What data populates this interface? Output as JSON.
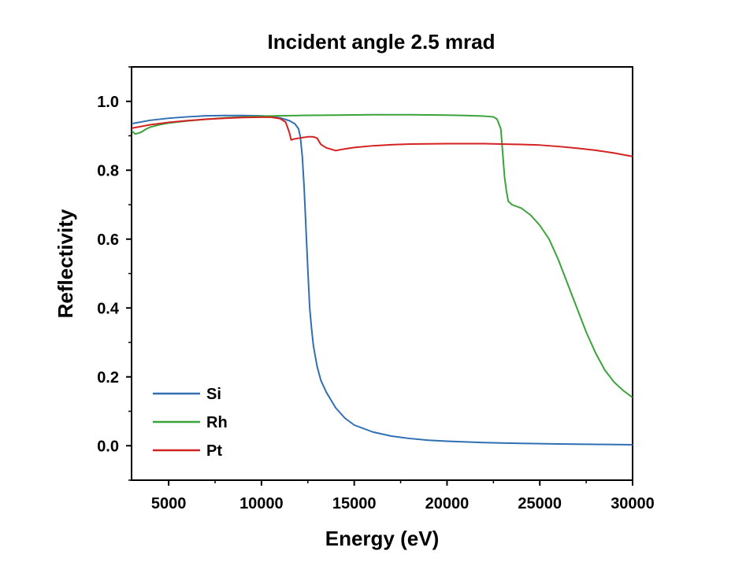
{
  "chart_data": {
    "type": "line",
    "title": "Incident angle 2.5 mrad",
    "xlabel": "Energy (eV)",
    "ylabel": "Reflectivity",
    "xlim": [
      3000,
      30000
    ],
    "ylim": [
      -0.1,
      1.1
    ],
    "xticks": [
      5000,
      10000,
      15000,
      20000,
      25000,
      30000
    ],
    "yticks": [
      0.0,
      0.2,
      0.4,
      0.6,
      0.8,
      1.0
    ],
    "grid": false,
    "legend_position": "bottom-left",
    "series": [
      {
        "name": "Si",
        "color": "#2f6fb2",
        "x": [
          3000,
          4000,
          5000,
          6000,
          7000,
          8000,
          9000,
          10000,
          10500,
          11000,
          11500,
          11800,
          12000,
          12100,
          12200,
          12300,
          12400,
          12500,
          12600,
          12700,
          12800,
          13000,
          13200,
          13500,
          14000,
          14500,
          15000,
          16000,
          17000,
          18000,
          19000,
          20000,
          22000,
          24000,
          26000,
          28000,
          30000
        ],
        "y": [
          0.935,
          0.945,
          0.951,
          0.955,
          0.958,
          0.959,
          0.959,
          0.958,
          0.956,
          0.952,
          0.944,
          0.935,
          0.92,
          0.895,
          0.84,
          0.75,
          0.63,
          0.51,
          0.4,
          0.34,
          0.29,
          0.23,
          0.19,
          0.155,
          0.11,
          0.08,
          0.06,
          0.04,
          0.028,
          0.021,
          0.016,
          0.013,
          0.009,
          0.007,
          0.005,
          0.004,
          0.003
        ]
      },
      {
        "name": "Rh",
        "color": "#3aa33a",
        "x": [
          3000,
          3200,
          3500,
          3800,
          4000,
          4500,
          5000,
          6000,
          7000,
          8000,
          9000,
          10000,
          12000,
          14000,
          16000,
          18000,
          20000,
          21000,
          22000,
          22500,
          22700,
          22900,
          23000,
          23100,
          23200,
          23300,
          23500,
          24000,
          24500,
          25000,
          25500,
          26000,
          26500,
          27000,
          27500,
          28000,
          28500,
          29000,
          29500,
          30000
        ],
        "y": [
          0.915,
          0.905,
          0.91,
          0.92,
          0.925,
          0.932,
          0.937,
          0.943,
          0.948,
          0.952,
          0.955,
          0.957,
          0.959,
          0.96,
          0.961,
          0.961,
          0.96,
          0.959,
          0.957,
          0.955,
          0.948,
          0.92,
          0.85,
          0.78,
          0.74,
          0.71,
          0.7,
          0.69,
          0.67,
          0.64,
          0.6,
          0.54,
          0.47,
          0.4,
          0.33,
          0.27,
          0.22,
          0.185,
          0.16,
          0.14
        ]
      },
      {
        "name": "Pt",
        "color": "#d42222",
        "x": [
          3000,
          4000,
          5000,
          6000,
          7000,
          8000,
          9000,
          10000,
          10500,
          11000,
          11300,
          11500,
          11600,
          11700,
          12000,
          12500,
          12800,
          13000,
          13200,
          13500,
          14000,
          14500,
          15000,
          16000,
          17000,
          18000,
          20000,
          22000,
          24000,
          25000,
          26000,
          27000,
          28000,
          29000,
          30000
        ],
        "y": [
          0.922,
          0.932,
          0.939,
          0.944,
          0.948,
          0.951,
          0.953,
          0.954,
          0.954,
          0.95,
          0.94,
          0.91,
          0.888,
          0.89,
          0.893,
          0.897,
          0.897,
          0.893,
          0.875,
          0.865,
          0.857,
          0.862,
          0.866,
          0.871,
          0.874,
          0.876,
          0.877,
          0.877,
          0.875,
          0.873,
          0.869,
          0.864,
          0.858,
          0.85,
          0.84
        ]
      }
    ]
  }
}
